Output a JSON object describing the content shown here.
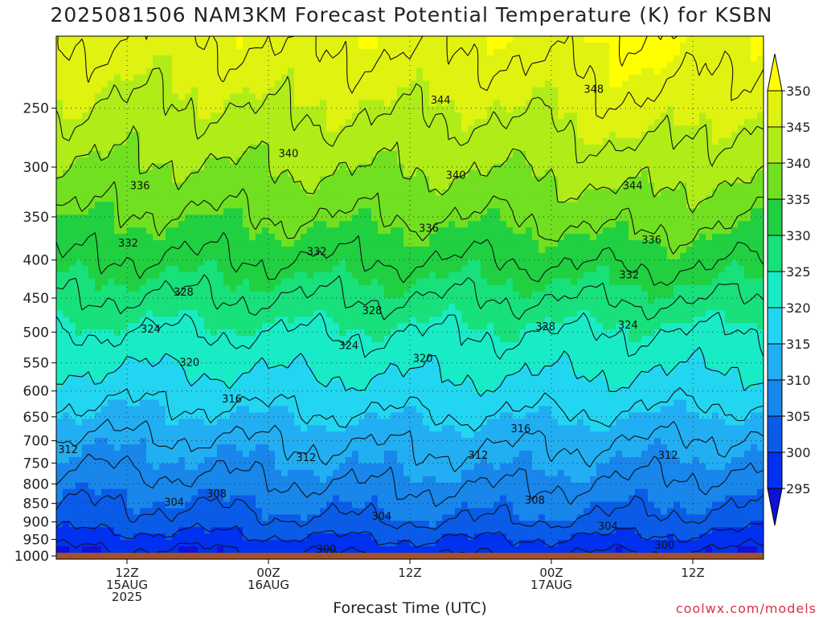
{
  "chart_data": {
    "type": "filled-contour",
    "title": "2025081506 NAM3KM Forecast Potential Temperature (K) for KSBN",
    "xlabel": "Forecast Time (UTC)",
    "ylabel": "",
    "credit": "coolwx.com/models",
    "y_axis": {
      "scale": "log-pressure",
      "ylim": [
        1010,
        200
      ],
      "ticks": [
        250,
        300,
        350,
        400,
        450,
        500,
        550,
        600,
        650,
        700,
        750,
        800,
        850,
        900,
        950,
        1000
      ],
      "tick_labels": [
        "250",
        "300",
        "350",
        "400",
        "450",
        "500",
        "550",
        "600",
        "650",
        "700",
        "750",
        "800",
        "850",
        "900",
        "950",
        "1000"
      ]
    },
    "x_axis": {
      "xlim": [
        0,
        60
      ],
      "ticks": [
        6,
        18,
        30,
        42,
        54
      ],
      "tick_labels": [
        [
          "12Z",
          "15AUG",
          "2025"
        ],
        [
          "00Z",
          "16AUG"
        ],
        [
          "12Z"
        ],
        [
          "00Z",
          "17AUG"
        ],
        [
          "12Z"
        ]
      ]
    },
    "grid": true,
    "colorbar": {
      "levels": [
        295,
        300,
        305,
        310,
        315,
        320,
        325,
        330,
        335,
        340,
        345,
        350
      ],
      "labels": [
        "295",
        "300",
        "305",
        "310",
        "315",
        "320",
        "325",
        "330",
        "335",
        "340",
        "345",
        "350"
      ],
      "colors": [
        "#1010d8",
        "#0030f0",
        "#0a5ce8",
        "#1886ea",
        "#22aef2",
        "#22d6f2",
        "#18ecc6",
        "#18e07a",
        "#20d040",
        "#70e020",
        "#b0ec18",
        "#e0f210",
        "#ffff00"
      ]
    },
    "ground_color": "#a0522d",
    "contour_interval": 4,
    "contour_color": "#111111",
    "contour_labels": [
      {
        "value": 348,
        "text": "348",
        "t": 45.6,
        "p": 236
      },
      {
        "value": 344,
        "text": "344",
        "t": 32.6,
        "p": 244
      },
      {
        "value": 344,
        "text": "344",
        "t": 48.9,
        "p": 318
      },
      {
        "value": 340,
        "text": "340",
        "t": 19.7,
        "p": 288
      },
      {
        "value": 340,
        "text": "340",
        "t": 33.9,
        "p": 308
      },
      {
        "value": 336,
        "text": "336",
        "t": 7.1,
        "p": 318
      },
      {
        "value": 336,
        "text": "336",
        "t": 31.6,
        "p": 363
      },
      {
        "value": 336,
        "text": "336",
        "t": 50.5,
        "p": 376
      },
      {
        "value": 332,
        "text": "332",
        "t": 6.1,
        "p": 380
      },
      {
        "value": 332,
        "text": "332",
        "t": 22.1,
        "p": 390
      },
      {
        "value": 332,
        "text": "332",
        "t": 48.6,
        "p": 419
      },
      {
        "value": 328,
        "text": "328",
        "t": 10.8,
        "p": 442
      },
      {
        "value": 328,
        "text": "328",
        "t": 26.8,
        "p": 468
      },
      {
        "value": 328,
        "text": "328",
        "t": 41.5,
        "p": 492
      },
      {
        "value": 324,
        "text": "324",
        "t": 8.0,
        "p": 496
      },
      {
        "value": 324,
        "text": "324",
        "t": 24.8,
        "p": 522
      },
      {
        "value": 324,
        "text": "324",
        "t": 48.5,
        "p": 490
      },
      {
        "value": 320,
        "text": "320",
        "t": 11.3,
        "p": 550
      },
      {
        "value": 320,
        "text": "320",
        "t": 31.1,
        "p": 543
      },
      {
        "value": 316,
        "text": "316",
        "t": 14.9,
        "p": 616
      },
      {
        "value": 316,
        "text": "316",
        "t": 39.4,
        "p": 675
      },
      {
        "value": 312,
        "text": "312",
        "t": 1.0,
        "p": 720
      },
      {
        "value": 312,
        "text": "312",
        "t": 21.2,
        "p": 738
      },
      {
        "value": 312,
        "text": "312",
        "t": 35.8,
        "p": 733
      },
      {
        "value": 312,
        "text": "312",
        "t": 51.9,
        "p": 733
      },
      {
        "value": 308,
        "text": "308",
        "t": 13.6,
        "p": 826
      },
      {
        "value": 308,
        "text": "308",
        "t": 40.6,
        "p": 842
      },
      {
        "value": 304,
        "text": "304",
        "t": 10.0,
        "p": 848
      },
      {
        "value": 304,
        "text": "304",
        "t": 27.6,
        "p": 885
      },
      {
        "value": 304,
        "text": "304",
        "t": 46.8,
        "p": 913
      },
      {
        "value": 300,
        "text": "300",
        "t": 22.9,
        "p": 980
      },
      {
        "value": 300,
        "text": "300",
        "t": 51.6,
        "p": 968
      }
    ]
  }
}
